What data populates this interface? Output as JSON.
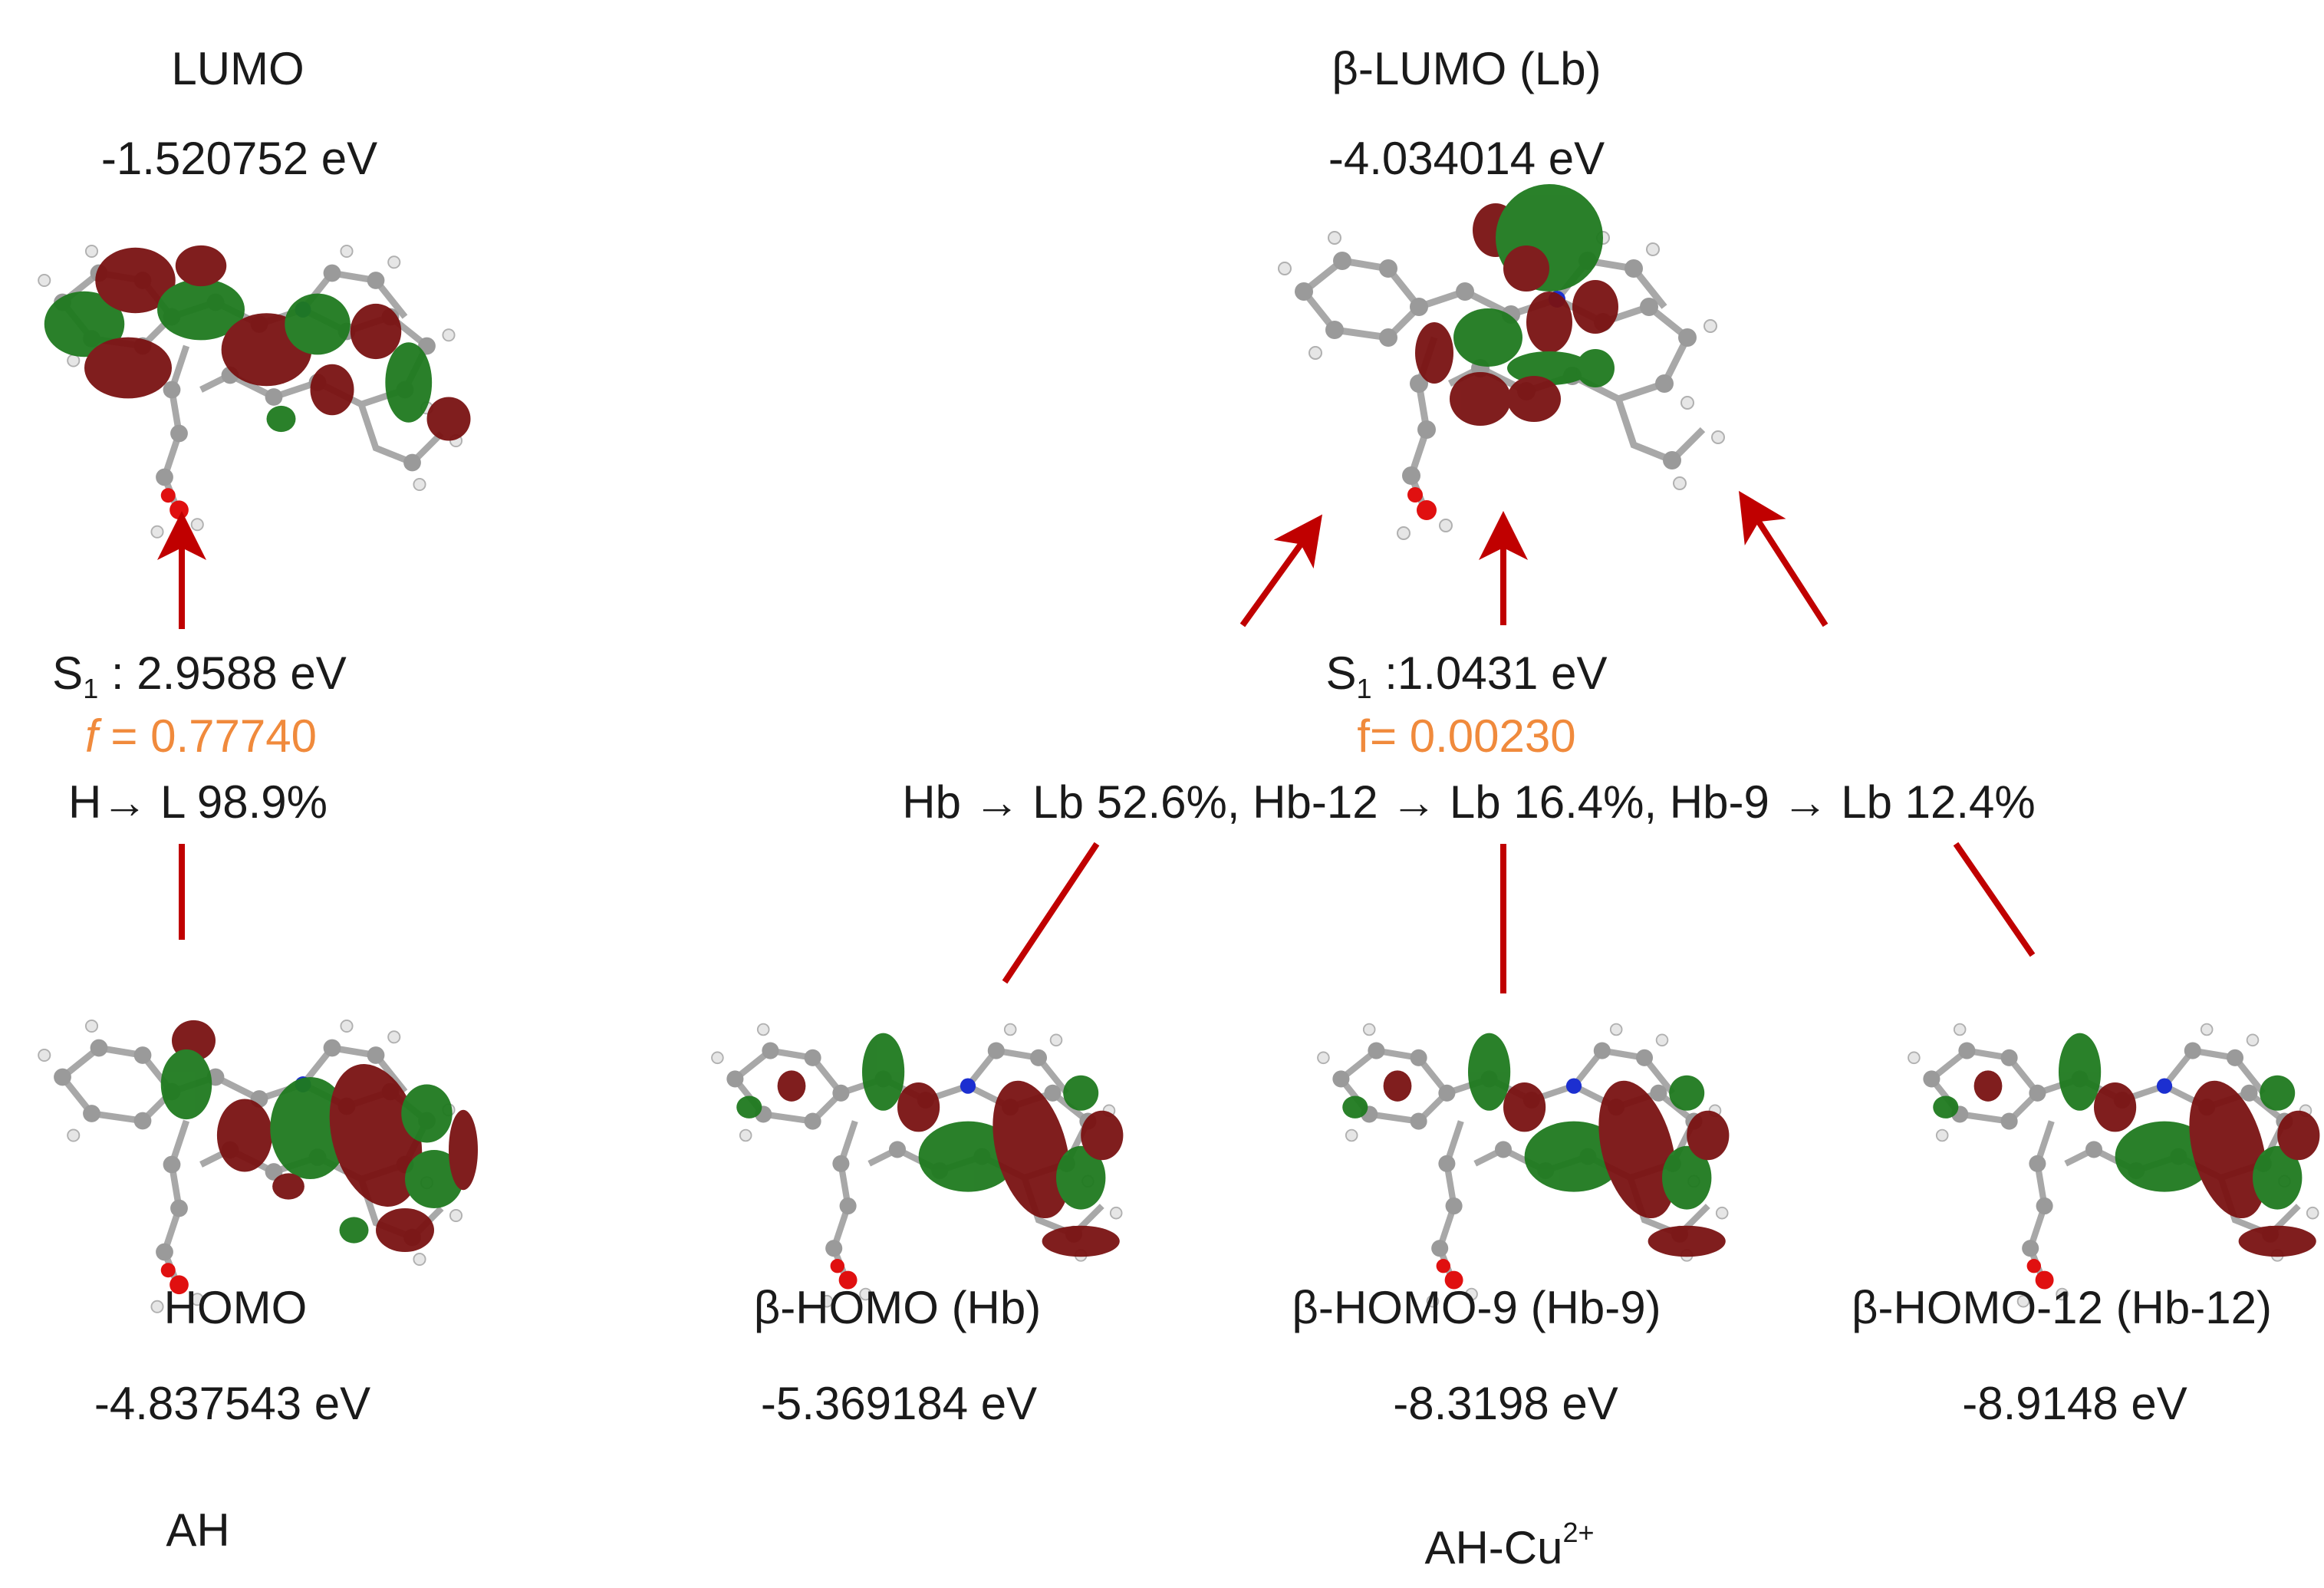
{
  "colors": {
    "arrow": "#c00000",
    "lobe_red": "#7a1212",
    "lobe_green": "#1f7a1f",
    "atom_c": "#9a9a9a",
    "atom_h": "#e6e6e6",
    "atom_n": "#1c2fd0",
    "atom_o": "#e01010",
    "f_text": "#f08a3c"
  },
  "left": {
    "lumo": {
      "name": "LUMO",
      "energy": "-1.520752 eV"
    },
    "transition": {
      "s1_prefix": "S",
      "s1_sub": "1",
      "s1_value": " : 2.9588 eV",
      "f_label": "f",
      "f_value": " =  0.77740",
      "assignment": "H→ L 98.9%"
    },
    "homo": {
      "name": "HOMO",
      "energy": "-4.837543 eV"
    },
    "system": "AH"
  },
  "right": {
    "lumo": {
      "name": "β-LUMO (Lb)",
      "energy": "-4.034014 eV"
    },
    "transition": {
      "s1_prefix": "S",
      "s1_sub": "1",
      "s1_value": " :1.0431 eV",
      "f_value": "f=  0.00230",
      "assignment": "Hb → Lb 52.6%, Hb-12 → Lb 16.4%, Hb-9 → Lb 12.4%"
    },
    "homos": [
      {
        "name": "β-HOMO (Hb)",
        "energy": "-5.369184 eV"
      },
      {
        "name": "β-HOMO-9 (Hb-9)",
        "energy": "-8.3198 eV"
      },
      {
        "name": "β-HOMO-12 (Hb-12)",
        "energy": "-8.9148 eV"
      }
    ],
    "system_base": "AH-Cu",
    "system_sup": "2+"
  }
}
